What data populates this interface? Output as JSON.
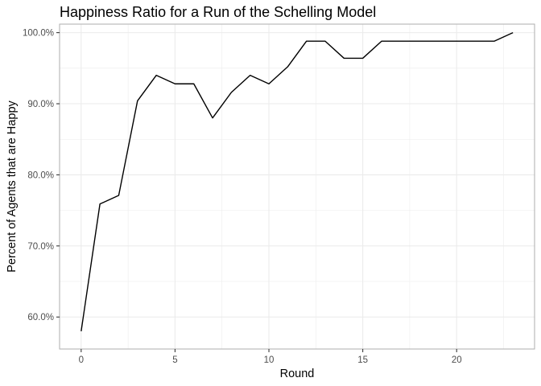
{
  "chart_data": {
    "type": "line",
    "title": "Happiness Ratio for a Run of the Schelling Model",
    "xlabel": "Round",
    "ylabel": "Percent of Agents that are Happy",
    "xlim": [
      -1.15,
      24.15
    ],
    "ylim": [
      0.555,
      1.012
    ],
    "x_major_ticks": [
      0,
      5,
      10,
      15,
      20
    ],
    "x_minor_ticks": [
      2.5,
      7.5,
      12.5,
      17.5,
      22.5
    ],
    "x_tick_labels": [
      "0",
      "5",
      "10",
      "15",
      "20"
    ],
    "y_major_ticks": [
      0.6,
      0.7,
      0.8,
      0.9,
      1.0
    ],
    "y_minor_ticks": [
      0.65,
      0.75,
      0.85,
      0.95
    ],
    "y_tick_labels": [
      "60.0%",
      "70.0%",
      "80.0%",
      "90.0%",
      "100.0%"
    ],
    "grid": true,
    "series": [
      {
        "x": [
          0,
          1,
          2,
          3,
          4,
          5,
          6,
          7,
          8,
          9,
          10,
          11,
          12,
          13,
          14,
          15,
          16,
          17,
          18,
          19,
          20,
          21,
          22,
          23
        ],
        "y": [
          0.58,
          0.759,
          0.771,
          0.904,
          0.94,
          0.928,
          0.928,
          0.88,
          0.916,
          0.94,
          0.928,
          0.952,
          0.988,
          0.988,
          0.964,
          0.964,
          0.988,
          0.988,
          0.988,
          0.988,
          0.988,
          0.988,
          0.988,
          1.0
        ],
        "color": "#000000"
      }
    ]
  }
}
